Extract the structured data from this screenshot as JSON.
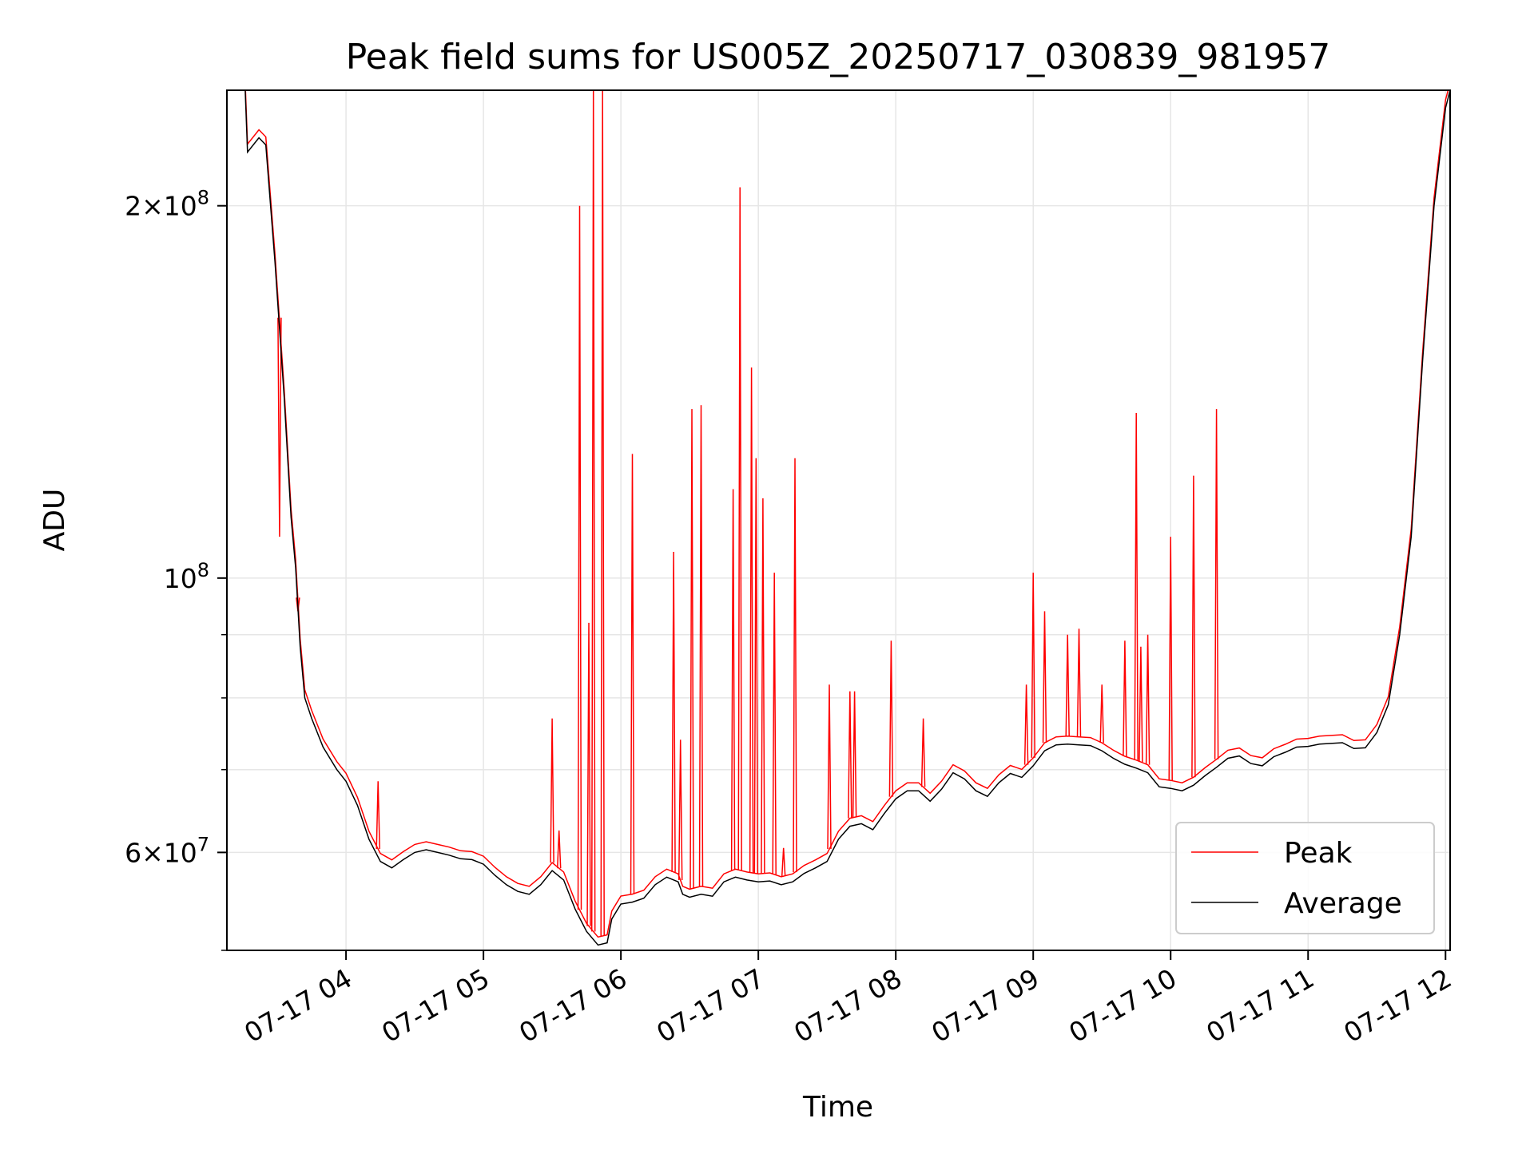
{
  "chart_data": {
    "type": "line",
    "title": "Peak field sums for US005Z_20250717_030839_981957",
    "xlabel": "Time",
    "ylabel": "ADU",
    "yscale": "log",
    "xlim": [
      "2025-07-17T03:08",
      "2025-07-17T12:02"
    ],
    "ylim": [
      50000000,
      248000000
    ],
    "grid": true,
    "legend_position": "lower right",
    "x_ticks": [
      {
        "value": "2025-07-17T04:00",
        "label": "07-17 04"
      },
      {
        "value": "2025-07-17T05:00",
        "label": "07-17 05"
      },
      {
        "value": "2025-07-17T06:00",
        "label": "07-17 06"
      },
      {
        "value": "2025-07-17T07:00",
        "label": "07-17 07"
      },
      {
        "value": "2025-07-17T08:00",
        "label": "07-17 08"
      },
      {
        "value": "2025-07-17T09:00",
        "label": "07-17 09"
      },
      {
        "value": "2025-07-17T10:00",
        "label": "07-17 10"
      },
      {
        "value": "2025-07-17T11:00",
        "label": "07-17 11"
      },
      {
        "value": "2025-07-17T12:00",
        "label": "07-17 12"
      }
    ],
    "y_ticks": [
      {
        "value": 60000000,
        "mantissa": "6",
        "exponent": "7"
      },
      {
        "value": 100000000,
        "mantissa": "",
        "exponent": "8"
      },
      {
        "value": 200000000,
        "mantissa": "2",
        "exponent": "8"
      }
    ],
    "y_minor_ticks": [
      50000000,
      70000000,
      80000000,
      90000000
    ],
    "series": [
      {
        "name": "Average",
        "color": "#000000",
        "points": [
          [
            "03:08",
            248000000
          ],
          [
            "03:16",
            248000000
          ],
          [
            "03:17",
            221000000
          ],
          [
            "03:22",
            227000000
          ],
          [
            "03:25",
            224000000
          ],
          [
            "03:29",
            180000000
          ],
          [
            "03:33",
            140000000
          ],
          [
            "03:36",
            112000000
          ],
          [
            "03:38",
            102000000
          ],
          [
            "03:40",
            88000000
          ],
          [
            "03:42",
            80000000
          ],
          [
            "03:45",
            77000000
          ],
          [
            "03:50",
            73000000
          ],
          [
            "03:56",
            70000000
          ],
          [
            "04:00",
            68500000
          ],
          [
            "04:05",
            65500000
          ],
          [
            "04:10",
            61500000
          ],
          [
            "04:15",
            59000000
          ],
          [
            "04:20",
            58300000
          ],
          [
            "04:25",
            59200000
          ],
          [
            "04:30",
            60000000
          ],
          [
            "04:35",
            60300000
          ],
          [
            "04:40",
            60000000
          ],
          [
            "04:45",
            59700000
          ],
          [
            "04:50",
            59300000
          ],
          [
            "04:55",
            59200000
          ],
          [
            "05:00",
            58700000
          ],
          [
            "05:05",
            57500000
          ],
          [
            "05:10",
            56500000
          ],
          [
            "05:15",
            55800000
          ],
          [
            "05:20",
            55500000
          ],
          [
            "05:25",
            56500000
          ],
          [
            "05:30",
            58000000
          ],
          [
            "05:35",
            57000000
          ],
          [
            "05:40",
            54000000
          ],
          [
            "05:45",
            51800000
          ],
          [
            "05:50",
            50500000
          ],
          [
            "05:54",
            50700000
          ],
          [
            "05:56",
            53000000
          ],
          [
            "06:00",
            54500000
          ],
          [
            "06:05",
            54700000
          ],
          [
            "06:10",
            55100000
          ],
          [
            "06:15",
            56500000
          ],
          [
            "06:20",
            57300000
          ],
          [
            "06:25",
            56800000
          ],
          [
            "06:27",
            55500000
          ],
          [
            "06:30",
            55200000
          ],
          [
            "06:35",
            55500000
          ],
          [
            "06:40",
            55300000
          ],
          [
            "06:45",
            56800000
          ],
          [
            "06:50",
            57300000
          ],
          [
            "06:55",
            57000000
          ],
          [
            "07:00",
            56800000
          ],
          [
            "07:05",
            56900000
          ],
          [
            "07:10",
            56500000
          ],
          [
            "07:15",
            56800000
          ],
          [
            "07:20",
            57700000
          ],
          [
            "07:25",
            58300000
          ],
          [
            "07:30",
            59000000
          ],
          [
            "07:35",
            61500000
          ],
          [
            "07:40",
            63000000
          ],
          [
            "07:45",
            63300000
          ],
          [
            "07:50",
            62600000
          ],
          [
            "07:55",
            64500000
          ],
          [
            "08:00",
            66300000
          ],
          [
            "08:05",
            67300000
          ],
          [
            "08:10",
            67300000
          ],
          [
            "08:15",
            66000000
          ],
          [
            "08:20",
            67500000
          ],
          [
            "08:25",
            69600000
          ],
          [
            "08:30",
            68800000
          ],
          [
            "08:35",
            67300000
          ],
          [
            "08:40",
            66600000
          ],
          [
            "08:45",
            68300000
          ],
          [
            "08:50",
            69500000
          ],
          [
            "08:55",
            69000000
          ],
          [
            "09:00",
            70500000
          ],
          [
            "09:05",
            72500000
          ],
          [
            "09:10",
            73300000
          ],
          [
            "09:15",
            73400000
          ],
          [
            "09:20",
            73300000
          ],
          [
            "09:25",
            73200000
          ],
          [
            "09:30",
            72500000
          ],
          [
            "09:35",
            71500000
          ],
          [
            "09:40",
            70700000
          ],
          [
            "09:45",
            70200000
          ],
          [
            "09:50",
            69600000
          ],
          [
            "09:55",
            67800000
          ],
          [
            "10:00",
            67600000
          ],
          [
            "10:05",
            67300000
          ],
          [
            "10:10",
            68000000
          ],
          [
            "10:15",
            69200000
          ],
          [
            "10:20",
            70300000
          ],
          [
            "10:25",
            71500000
          ],
          [
            "10:30",
            71800000
          ],
          [
            "10:35",
            70800000
          ],
          [
            "10:40",
            70500000
          ],
          [
            "10:45",
            71700000
          ],
          [
            "10:50",
            72300000
          ],
          [
            "10:55",
            73000000
          ],
          [
            "11:00",
            73100000
          ],
          [
            "11:05",
            73400000
          ],
          [
            "11:10",
            73500000
          ],
          [
            "11:15",
            73600000
          ],
          [
            "11:20",
            72800000
          ],
          [
            "11:25",
            72900000
          ],
          [
            "11:30",
            75000000
          ],
          [
            "11:35",
            79000000
          ],
          [
            "11:40",
            90000000
          ],
          [
            "11:45",
            108000000
          ],
          [
            "11:50",
            150000000
          ],
          [
            "11:55",
            200000000
          ],
          [
            "12:00",
            240000000
          ],
          [
            "12:02",
            248000000
          ]
        ]
      },
      {
        "name": "Peak",
        "color": "#ff0000",
        "spikes": [
          [
            "03:31",
            108000000
          ],
          [
            "03:39",
            94000000
          ],
          [
            "04:14",
            68500000
          ],
          [
            "05:30",
            77000000
          ],
          [
            "05:33",
            62500000
          ],
          [
            "05:42",
            200000000
          ],
          [
            "05:46",
            92000000
          ],
          [
            "05:48",
            248000000
          ],
          [
            "05:52",
            248000000
          ],
          [
            "06:05",
            126000000
          ],
          [
            "06:23",
            105000000
          ],
          [
            "06:26",
            74000000
          ],
          [
            "06:31",
            137000000
          ],
          [
            "06:35",
            138000000
          ],
          [
            "06:49",
            118000000
          ],
          [
            "06:52",
            207000000
          ],
          [
            "06:57",
            148000000
          ],
          [
            "06:59",
            125000000
          ],
          [
            "07:02",
            116000000
          ],
          [
            "07:07",
            101000000
          ],
          [
            "07:11",
            60500000
          ],
          [
            "07:16",
            125000000
          ],
          [
            "07:31",
            82000000
          ],
          [
            "07:40",
            81000000
          ],
          [
            "07:42",
            81000000
          ],
          [
            "07:58",
            89000000
          ],
          [
            "08:12",
            77000000
          ],
          [
            "08:57",
            82000000
          ],
          [
            "09:00",
            101000000
          ],
          [
            "09:05",
            94000000
          ],
          [
            "09:15",
            90000000
          ],
          [
            "09:20",
            91000000
          ],
          [
            "09:30",
            82000000
          ],
          [
            "09:40",
            89000000
          ],
          [
            "09:45",
            136000000
          ],
          [
            "09:47",
            88000000
          ],
          [
            "09:50",
            90000000
          ],
          [
            "10:00",
            108000000
          ],
          [
            "10:10",
            121000000
          ],
          [
            "10:20",
            137000000
          ]
        ]
      }
    ]
  }
}
